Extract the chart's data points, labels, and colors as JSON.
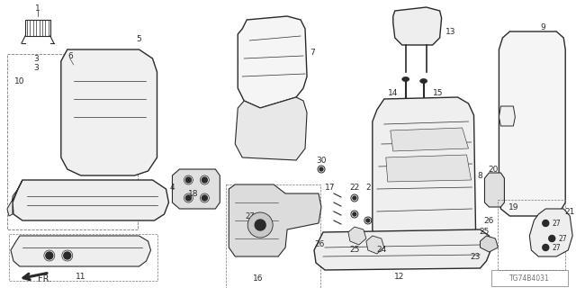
{
  "bg_color": "#ffffff",
  "line_color": "#2a2a2a",
  "gray_color": "#777777",
  "light_gray": "#cccccc",
  "diagram_code": "TG74B4031",
  "figsize": [
    6.4,
    3.2
  ],
  "dpi": 100
}
